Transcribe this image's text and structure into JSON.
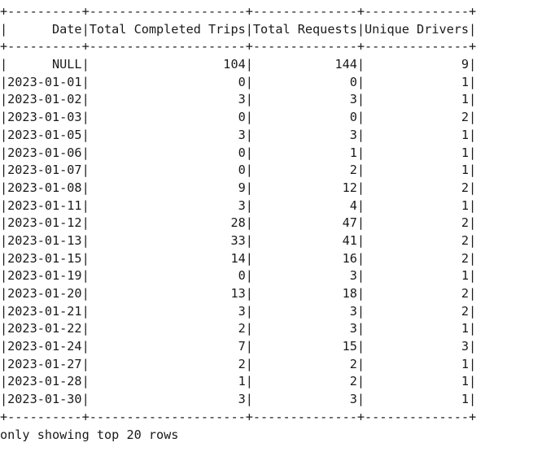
{
  "table": {
    "columns": [
      "Date",
      "Total Completed Trips",
      "Total Requests",
      "Unique Drivers"
    ],
    "align": [
      "right",
      "right",
      "right",
      "right"
    ],
    "rows": [
      [
        "NULL",
        "104",
        "144",
        "9"
      ],
      [
        "2023-01-01",
        "0",
        "0",
        "1"
      ],
      [
        "2023-01-02",
        "3",
        "3",
        "1"
      ],
      [
        "2023-01-03",
        "0",
        "0",
        "2"
      ],
      [
        "2023-01-05",
        "3",
        "3",
        "1"
      ],
      [
        "2023-01-06",
        "0",
        "1",
        "1"
      ],
      [
        "2023-01-07",
        "0",
        "2",
        "1"
      ],
      [
        "2023-01-08",
        "9",
        "12",
        "2"
      ],
      [
        "2023-01-11",
        "3",
        "4",
        "1"
      ],
      [
        "2023-01-12",
        "28",
        "47",
        "2"
      ],
      [
        "2023-01-13",
        "33",
        "41",
        "2"
      ],
      [
        "2023-01-15",
        "14",
        "16",
        "2"
      ],
      [
        "2023-01-19",
        "0",
        "3",
        "1"
      ],
      [
        "2023-01-20",
        "13",
        "18",
        "2"
      ],
      [
        "2023-01-21",
        "3",
        "3",
        "2"
      ],
      [
        "2023-01-22",
        "2",
        "3",
        "1"
      ],
      [
        "2023-01-24",
        "7",
        "15",
        "3"
      ],
      [
        "2023-01-27",
        "2",
        "2",
        "1"
      ],
      [
        "2023-01-28",
        "1",
        "2",
        "1"
      ],
      [
        "2023-01-30",
        "3",
        "3",
        "1"
      ]
    ]
  },
  "footer": "only showing top 20 rows"
}
